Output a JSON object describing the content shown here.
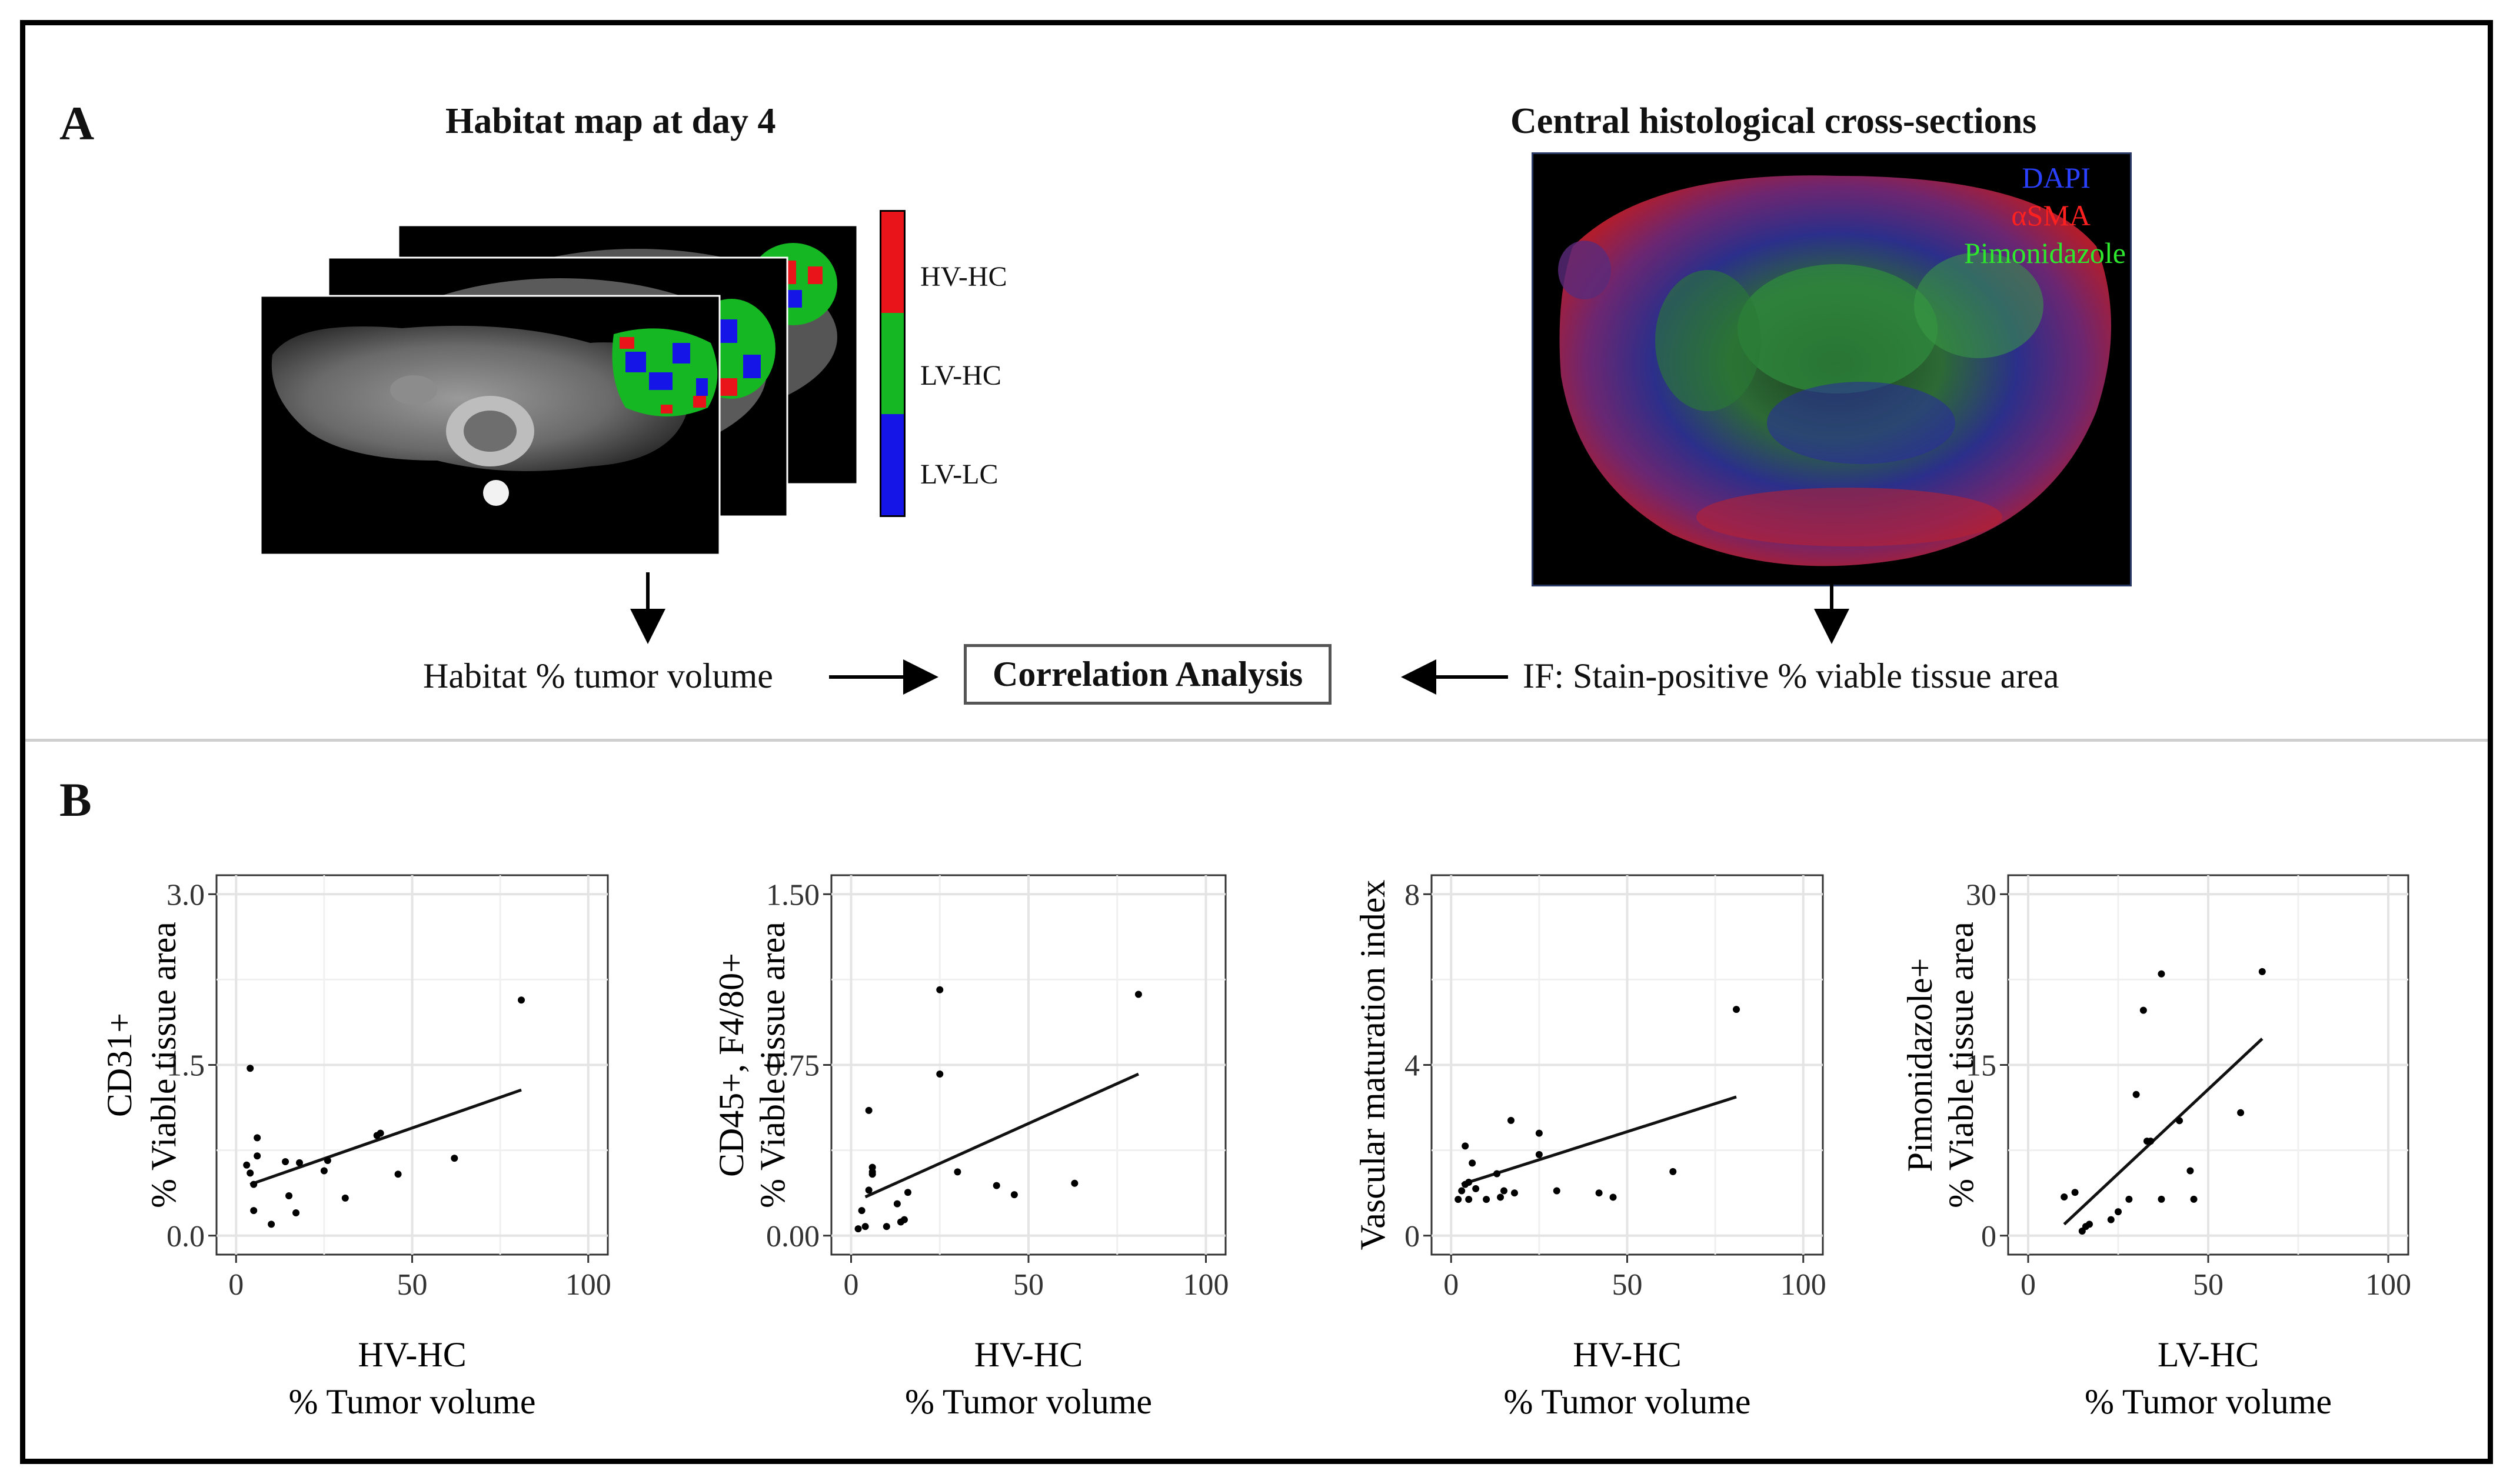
{
  "panel_a": {
    "label": "A",
    "left_heading": "Habitat map at day 4",
    "right_heading": "Central histological cross-sections",
    "colorbar": [
      {
        "label": "HV-HC",
        "color": "#e8141a"
      },
      {
        "label": "LV-HC",
        "color": "#15b823"
      },
      {
        "label": "LV-LC",
        "color": "#1515e8"
      }
    ],
    "stain_legend": [
      {
        "label": "DAPI",
        "color": "#2a40ff"
      },
      {
        "label": "αSMA",
        "color": "#ff2020"
      },
      {
        "label": "Pimonidazole",
        "color": "#2ee82e"
      }
    ],
    "flow_left": "Habitat % tumor volume",
    "flow_center": "Correlation Analysis",
    "flow_right": "IF: Stain-positive % viable tissue area"
  },
  "panel_b": {
    "label": "B"
  },
  "chart_data": [
    {
      "type": "scatter",
      "xlabel": [
        "HV-HC",
        "% Tumor volume"
      ],
      "ylabel": [
        "CD31+",
        "% Viable tissue area"
      ],
      "xlim": [
        0,
        100
      ],
      "ylim": [
        0,
        3.0
      ],
      "xticks": [
        "0",
        "50",
        "100"
      ],
      "xtick_values": [
        0,
        50,
        100
      ],
      "yticks": [
        "0.0",
        "1.5",
        "3.0"
      ],
      "ytick_values": [
        0,
        1.5,
        3.0
      ],
      "x": [
        3,
        4,
        4,
        5,
        5,
        6,
        6,
        10,
        14,
        15,
        17,
        18,
        25,
        26,
        31,
        40,
        41,
        46,
        62,
        81
      ],
      "y": [
        0.62,
        1.47,
        0.55,
        0.45,
        0.22,
        0.7,
        0.86,
        0.1,
        0.65,
        0.35,
        0.2,
        0.64,
        0.57,
        0.66,
        0.33,
        0.88,
        0.9,
        0.54,
        0.68,
        2.07
      ],
      "fit": [
        [
          4,
          0.45
        ],
        [
          81,
          1.28
        ]
      ]
    },
    {
      "type": "scatter",
      "xlabel": [
        "HV-HC",
        "% Tumor volume"
      ],
      "ylabel": [
        "CD45+, F4/80+",
        "% Viable tissue area"
      ],
      "xlim": [
        0,
        100
      ],
      "ylim": [
        0,
        1.5
      ],
      "xticks": [
        "0",
        "50",
        "100"
      ],
      "xtick_values": [
        0,
        50,
        100
      ],
      "yticks": [
        "0.00",
        "0.75",
        "1.50"
      ],
      "ytick_values": [
        0,
        0.75,
        1.5
      ],
      "x": [
        2,
        3,
        4,
        5,
        5,
        6,
        6,
        6,
        10,
        13,
        14,
        15,
        16,
        25,
        25,
        30,
        41,
        46,
        63,
        81
      ],
      "y": [
        0.03,
        0.11,
        0.04,
        0.55,
        0.2,
        0.27,
        0.3,
        0.28,
        0.04,
        0.14,
        0.06,
        0.07,
        0.19,
        0.71,
        1.08,
        0.28,
        0.22,
        0.18,
        0.23,
        1.06
      ],
      "fit": [
        [
          4,
          0.17
        ],
        [
          81,
          0.71
        ]
      ]
    },
    {
      "type": "scatter",
      "xlabel": [
        "HV-HC",
        "% Tumor volume"
      ],
      "ylabel": [
        "Vascular maturation index"
      ],
      "xlim": [
        0,
        100
      ],
      "ylim": [
        0,
        8
      ],
      "xticks": [
        "0",
        "50",
        "100"
      ],
      "xtick_values": [
        0,
        50,
        100
      ],
      "yticks": [
        "0",
        "4",
        "8"
      ],
      "ytick_values": [
        0,
        4,
        8
      ],
      "x": [
        2,
        3,
        4,
        4,
        5,
        5,
        6,
        7,
        10,
        13,
        14,
        15,
        17,
        18,
        25,
        25,
        30,
        42,
        46,
        63,
        81
      ],
      "y": [
        0.85,
        1.05,
        1.2,
        2.1,
        0.85,
        1.25,
        1.7,
        1.1,
        0.85,
        1.45,
        0.9,
        1.05,
        2.7,
        1.0,
        2.4,
        1.9,
        1.05,
        1.0,
        0.9,
        1.5,
        5.3
      ],
      "fit": [
        [
          3,
          1.2
        ],
        [
          81,
          3.25
        ]
      ]
    },
    {
      "type": "scatter",
      "xlabel": [
        "LV-HC",
        "% Tumor volume"
      ],
      "ylabel": [
        "Pimonidazole+",
        "% Viable tissue area"
      ],
      "xlim": [
        0,
        100
      ],
      "ylim": [
        0,
        30
      ],
      "xticks": [
        "0",
        "50",
        "100"
      ],
      "xtick_values": [
        0,
        50,
        100
      ],
      "yticks": [
        "0",
        "15",
        "30"
      ],
      "ytick_values": [
        0,
        15,
        30
      ],
      "x": [
        10,
        13,
        15,
        16,
        17,
        23,
        25,
        28,
        30,
        32,
        33,
        34,
        37,
        37,
        42,
        45,
        46,
        59,
        65
      ],
      "y": [
        3.4,
        3.8,
        0.4,
        0.8,
        1.0,
        1.4,
        2.1,
        3.2,
        12.4,
        19.8,
        8.3,
        8.3,
        23.0,
        3.2,
        10.1,
        5.7,
        3.2,
        10.8,
        23.2
      ],
      "fit": [
        [
          10,
          1.0
        ],
        [
          65,
          17.3
        ]
      ]
    }
  ]
}
